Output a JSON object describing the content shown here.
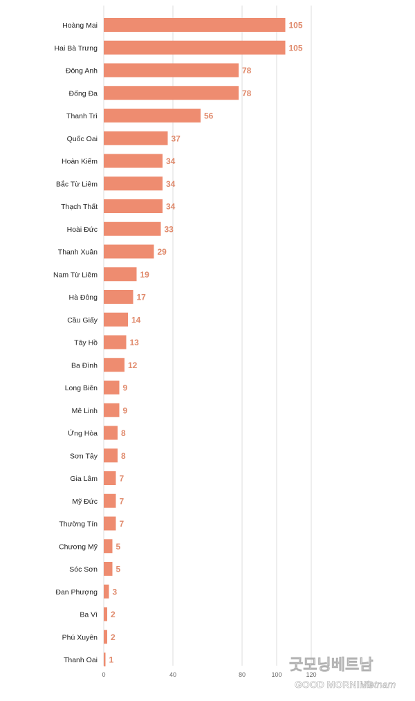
{
  "chart_data": {
    "type": "bar",
    "orientation": "horizontal",
    "categories": [
      "Hoàng Mai",
      "Hai Bà Trưng",
      "Đông Anh",
      "Đống Đa",
      "Thanh Trì",
      "Quốc Oai",
      "Hoàn Kiếm",
      "Bắc Từ Liêm",
      "Thạch Thất",
      "Hoài Đức",
      "Thanh Xuân",
      "Nam Từ Liêm",
      "Hà Đông",
      "Cầu Giấy",
      "Tây Hồ",
      "Ba Đình",
      "Long Biên",
      "Mê Linh",
      "Ứng Hòa",
      "Sơn Tây",
      "Gia Lâm",
      "Mỹ Đức",
      "Thường Tín",
      "Chương Mỹ",
      "Sóc Sơn",
      "Đan Phượng",
      "Ba Vì",
      "Phú Xuyên",
      "Thanh Oai"
    ],
    "values": [
      105,
      105,
      78,
      78,
      56,
      37,
      34,
      34,
      34,
      33,
      29,
      19,
      17,
      14,
      13,
      12,
      9,
      9,
      8,
      8,
      7,
      7,
      7,
      5,
      5,
      3,
      2,
      2,
      1
    ],
    "xlim": [
      0,
      120
    ],
    "xticks": [
      0,
      40,
      80,
      100,
      120
    ],
    "grid": true,
    "title": "",
    "xlabel": "",
    "ylabel": ""
  },
  "colors": {
    "bar": "#ee8c70",
    "value_label": "#e08a6c",
    "gridline": "#dddddd"
  },
  "watermark": {
    "korean_text": "굿모닝베트남",
    "line1": "GOOD MORNING",
    "line2": "Vietnam"
  }
}
